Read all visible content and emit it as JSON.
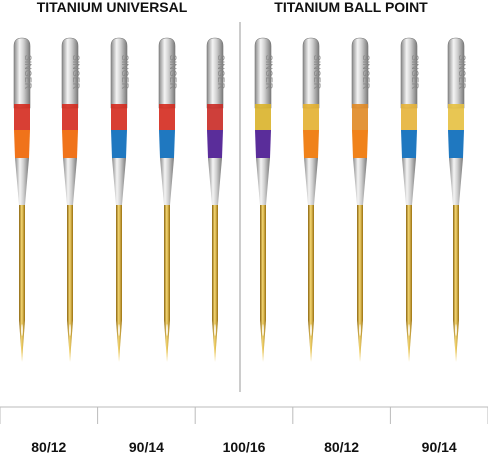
{
  "header": {
    "left_title": "TITANIUM UNIVERSAL",
    "right_title": "TITANIUM BALL POINT"
  },
  "needle_marking": "SINGER",
  "sizes": [
    "80/12",
    "90/14",
    "100/16",
    "80/12",
    "90/14"
  ]
}
